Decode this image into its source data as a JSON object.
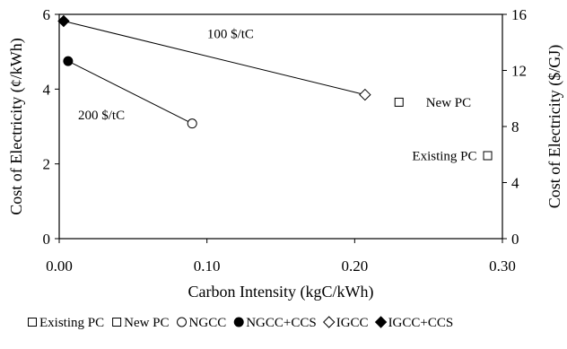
{
  "chart_data": {
    "type": "scatter",
    "xlabel": "Carbon Intensity (kgC/kWh)",
    "ylabel": "Cost of Electricity (¢/kWh)",
    "y2label": "Cost of Electricity ($/GJ)",
    "xlim": [
      0,
      0.3
    ],
    "ylim": [
      0,
      6
    ],
    "y2lim": [
      0,
      16
    ],
    "x_ticks": [
      "0.00",
      "0.10",
      "0.20",
      "0.30"
    ],
    "y_ticks": [
      "0",
      "2",
      "4",
      "6"
    ],
    "y2_ticks": [
      "0",
      "4",
      "8",
      "12",
      "16"
    ],
    "series": [
      {
        "name": "Existing PC",
        "marker": "open-square",
        "x": [
          0.29
        ],
        "y": [
          2.22
        ],
        "label": "Existing PC"
      },
      {
        "name": "New PC",
        "marker": "open-square",
        "x": [
          0.23
        ],
        "y": [
          3.65
        ],
        "label": "New PC"
      },
      {
        "name": "NGCC",
        "marker": "open-circle",
        "x": [
          0.09
        ],
        "y": [
          3.08
        ]
      },
      {
        "name": "NGCC+CCS",
        "marker": "filled-circle",
        "x": [
          0.006
        ],
        "y": [
          4.75
        ]
      },
      {
        "name": "IGCC",
        "marker": "open-diamond",
        "x": [
          0.207
        ],
        "y": [
          3.85
        ]
      },
      {
        "name": "IGCC+CCS",
        "marker": "filled-diamond",
        "x": [
          0.003
        ],
        "y": [
          5.82
        ]
      }
    ],
    "lines": [
      {
        "label": "100 $/tC",
        "from": [
          0.003,
          5.82
        ],
        "to": [
          0.207,
          3.85
        ]
      },
      {
        "label": "200 $/tC",
        "from": [
          0.006,
          4.75
        ],
        "to": [
          0.09,
          3.08
        ]
      }
    ],
    "grid": false,
    "legend": "bottom"
  }
}
